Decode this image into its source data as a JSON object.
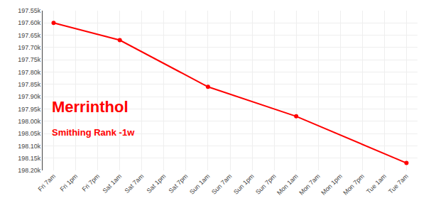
{
  "chart_data": {
    "type": "line",
    "title": "Merrinthol",
    "subtitle": "Smithing Rank -1w",
    "categories": [
      "Fri 7am",
      "Fri 1pm",
      "Fri 7pm",
      "Sat 1am",
      "Sat 7am",
      "Sat 1pm",
      "Sat 7pm",
      "Sun 1am",
      "Sun 7am",
      "Sun 1pm",
      "Sun 7pm",
      "Mon 1am",
      "Mon 7am",
      "Mon 1pm",
      "Mon 7pm",
      "Tue 1am",
      "Tue 7am"
    ],
    "values": [
      197600,
      null,
      null,
      197670,
      null,
      null,
      null,
      197860,
      null,
      null,
      null,
      197980,
      null,
      null,
      null,
      null,
      198170
    ],
    "color": "#ff0000",
    "marker": "circle",
    "ylim": [
      198200,
      197550
    ],
    "yticks": [
      {
        "value": 197550,
        "label": "197.55k"
      },
      {
        "value": 197600,
        "label": "197.60k"
      },
      {
        "value": 197650,
        "label": "197.65k"
      },
      {
        "value": 197700,
        "label": "197.70k"
      },
      {
        "value": 197750,
        "label": "197.75k"
      },
      {
        "value": 197800,
        "label": "197.80k"
      },
      {
        "value": 197850,
        "label": "197.85k"
      },
      {
        "value": 197900,
        "label": "197.90k"
      },
      {
        "value": 197950,
        "label": "197.95k"
      },
      {
        "value": 198000,
        "label": "198.00k"
      },
      {
        "value": 198050,
        "label": "198.05k"
      },
      {
        "value": 198100,
        "label": "198.10k"
      },
      {
        "value": 198150,
        "label": "198.15k"
      },
      {
        "value": 198200,
        "label": "198.20k"
      }
    ],
    "grid": true
  }
}
